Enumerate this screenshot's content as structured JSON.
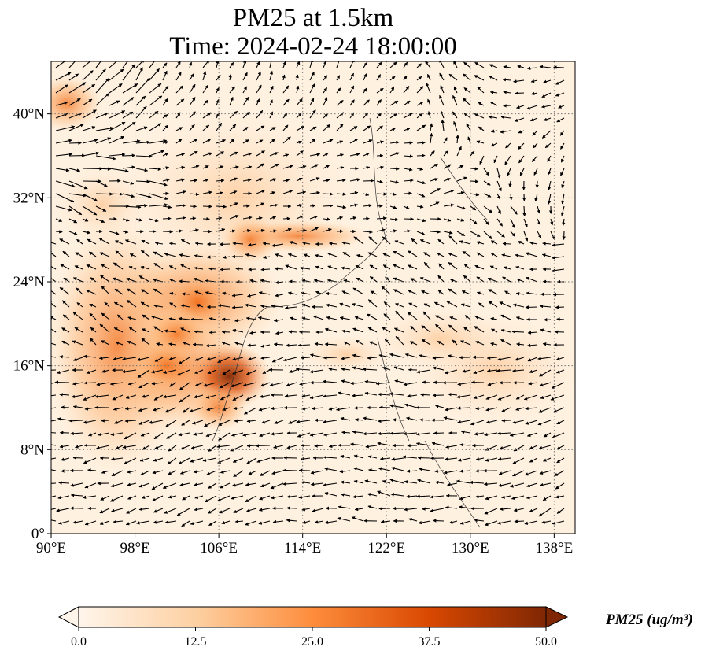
{
  "title_line1": "PM25 at 1.5km",
  "title_line2": "Time: 2024-02-24 18:00:00",
  "map": {
    "lon_range": [
      90,
      140
    ],
    "lat_range": [
      0,
      45
    ],
    "lon_ticks": [
      {
        "value": 90,
        "label": "90°E"
      },
      {
        "value": 98,
        "label": "98°E"
      },
      {
        "value": 106,
        "label": "106°E"
      },
      {
        "value": 114,
        "label": "114°E"
      },
      {
        "value": 122,
        "label": "122°E"
      },
      {
        "value": 130,
        "label": "130°E"
      },
      {
        "value": 138,
        "label": "138°E"
      }
    ],
    "lat_ticks": [
      {
        "value": 0,
        "label": "0°"
      },
      {
        "value": 8,
        "label": "8°N"
      },
      {
        "value": 16,
        "label": "16°N"
      },
      {
        "value": 24,
        "label": "24°N"
      },
      {
        "value": 32,
        "label": "32°N"
      },
      {
        "value": 40,
        "label": "40°N"
      }
    ],
    "grid": "dotted",
    "wind_vectors": "black arrows",
    "pm25_hotspots": [
      {
        "lon": 91.5,
        "lat": 41.0,
        "value": 38
      },
      {
        "lon": 104.0,
        "lat": 22.0,
        "value": 36
      },
      {
        "lon": 107.0,
        "lat": 15.0,
        "value": 48
      },
      {
        "lon": 102.0,
        "lat": 19.0,
        "value": 34
      },
      {
        "lon": 109.0,
        "lat": 28.0,
        "value": 30
      },
      {
        "lon": 101.0,
        "lat": 16.0,
        "value": 33
      },
      {
        "lon": 106.0,
        "lat": 12.0,
        "value": 30
      }
    ]
  },
  "colorbar": {
    "min": 0.0,
    "max": 50.0,
    "ticks": [
      "0.0",
      "12.5",
      "25.0",
      "37.5",
      "50.0"
    ],
    "label": "PM25 (ug/m³)",
    "colors": [
      "#fff5eb",
      "#fdd0a2",
      "#fd8d3c",
      "#d94801",
      "#7f2704"
    ],
    "extend": "both"
  }
}
